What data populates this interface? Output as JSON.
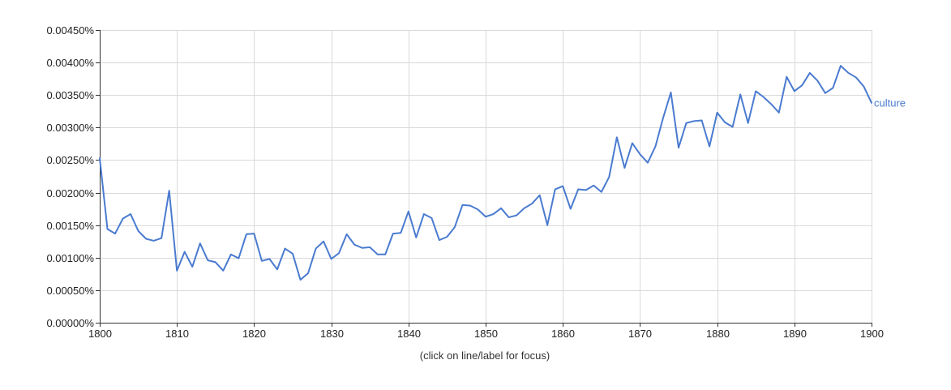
{
  "chart_data": {
    "type": "line",
    "title": "",
    "xlabel": "",
    "ylabel": "",
    "xlim": [
      1800,
      1900
    ],
    "ylim": [
      0,
      0.0045
    ],
    "grid": true,
    "x_ticks": [
      1800,
      1810,
      1820,
      1830,
      1840,
      1850,
      1860,
      1870,
      1880,
      1890,
      1900
    ],
    "x_tick_labels": [
      "1800",
      "1810",
      "1820",
      "1830",
      "1840",
      "1850",
      "1860",
      "1870",
      "1880",
      "1890",
      "1900"
    ],
    "y_ticks": [
      0,
      0.0005,
      0.001,
      0.0015,
      0.002,
      0.0025,
      0.003,
      0.0035,
      0.004,
      0.0045
    ],
    "y_tick_labels": [
      "0.00000%",
      "0.00050%",
      "0.00100%",
      "0.00150%",
      "0.00200%",
      "0.00250%",
      "0.00300%",
      "0.00350%",
      "0.00400%",
      "0.00450%"
    ],
    "series": [
      {
        "name": "culture",
        "color": "#4a7bd0",
        "x": [
          1800,
          1801,
          1802,
          1803,
          1804,
          1805,
          1806,
          1807,
          1808,
          1809,
          1810,
          1811,
          1812,
          1813,
          1814,
          1815,
          1816,
          1817,
          1818,
          1819,
          1820,
          1821,
          1822,
          1823,
          1824,
          1825,
          1826,
          1827,
          1828,
          1829,
          1830,
          1831,
          1832,
          1833,
          1834,
          1835,
          1836,
          1837,
          1838,
          1839,
          1840,
          1841,
          1842,
          1843,
          1844,
          1845,
          1846,
          1847,
          1848,
          1849,
          1850,
          1851,
          1852,
          1853,
          1854,
          1855,
          1856,
          1857,
          1858,
          1859,
          1860,
          1861,
          1862,
          1863,
          1864,
          1865,
          1866,
          1867,
          1868,
          1869,
          1870,
          1871,
          1872,
          1873,
          1874,
          1875,
          1876,
          1877,
          1878,
          1879,
          1880,
          1881,
          1882,
          1883,
          1884,
          1885,
          1886,
          1887,
          1888,
          1889,
          1890,
          1891,
          1892,
          1893,
          1894,
          1895,
          1896,
          1897,
          1898,
          1899,
          1900
        ],
        "values": [
          0.00253,
          0.00144,
          0.00137,
          0.0016,
          0.00167,
          0.00141,
          0.00129,
          0.00126,
          0.0013,
          0.00203,
          0.0008,
          0.00109,
          0.00086,
          0.00122,
          0.00096,
          0.00093,
          0.0008,
          0.00105,
          0.00099,
          0.00136,
          0.00137,
          0.00095,
          0.00098,
          0.00082,
          0.00114,
          0.00106,
          0.00066,
          0.00076,
          0.00114,
          0.00125,
          0.00098,
          0.00107,
          0.00136,
          0.0012,
          0.00115,
          0.00116,
          0.00105,
          0.00105,
          0.00137,
          0.00138,
          0.00171,
          0.00131,
          0.00167,
          0.00161,
          0.00127,
          0.00132,
          0.00147,
          0.00181,
          0.0018,
          0.00174,
          0.00163,
          0.00167,
          0.00176,
          0.00162,
          0.00165,
          0.00176,
          0.00183,
          0.00196,
          0.0015,
          0.00205,
          0.0021,
          0.00175,
          0.00205,
          0.00204,
          0.00211,
          0.00201,
          0.00224,
          0.00285,
          0.00238,
          0.00276,
          0.00259,
          0.00246,
          0.00271,
          0.00315,
          0.00354,
          0.00269,
          0.00307,
          0.0031,
          0.00311,
          0.00271,
          0.00323,
          0.00308,
          0.00301,
          0.00351,
          0.00307,
          0.00356,
          0.00347,
          0.00336,
          0.00323,
          0.00378,
          0.00356,
          0.00365,
          0.00384,
          0.00372,
          0.00353,
          0.00361,
          0.00395,
          0.00384,
          0.00377,
          0.00363,
          0.00338
        ]
      }
    ]
  },
  "footer": {
    "hint": "(click on line/label for focus)"
  }
}
